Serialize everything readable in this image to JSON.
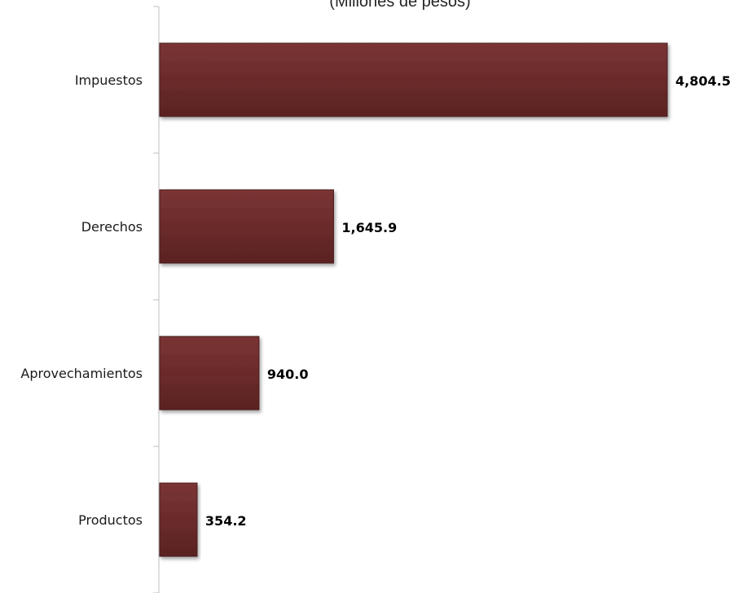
{
  "chart_data": {
    "type": "bar",
    "orientation": "horizontal",
    "subtitle": "(Millones de pesos)",
    "categories": [
      "Impuestos",
      "Derechos",
      "Aprovechamientos",
      "Productos"
    ],
    "values": [
      4804.5,
      1645.9,
      940.0,
      354.2
    ],
    "value_labels": [
      "4,804.5",
      "1,645.9",
      "940.0",
      "354.2"
    ],
    "bar_color": "#6b2b2b",
    "bar_edge_color": "#4a1a1a",
    "axis_color": "#bfbfbf",
    "grid": false,
    "legend": "none"
  }
}
